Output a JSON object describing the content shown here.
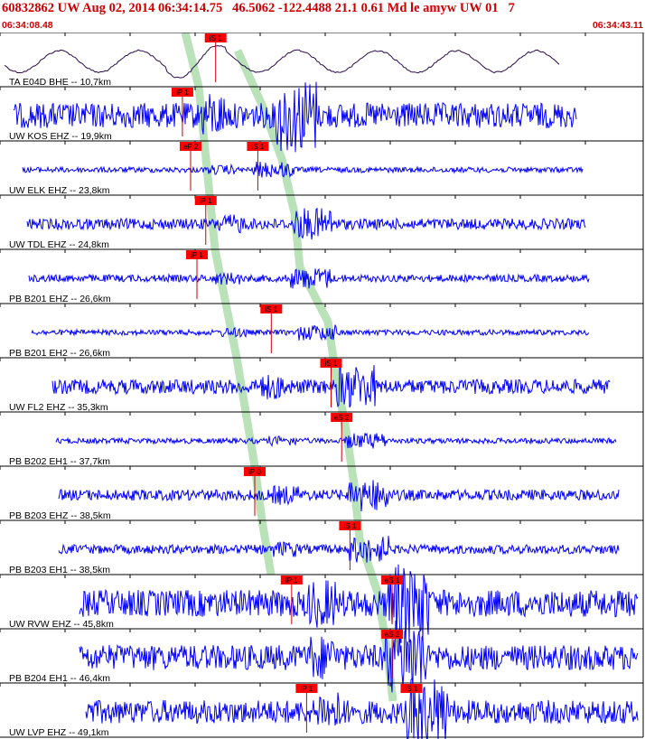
{
  "header": {
    "title": "60832862 UW Aug 02, 2014 06:34:14.75   46.5062 -122.4488 21.1 0.61 Md le amyw UW 01   7",
    "time_start": "06:34:08.48",
    "time_end": "06:34:43.11"
  },
  "colors": {
    "title": "#cc0000",
    "trace_primary": "#0000ff",
    "trace_first": "#2a0a4a",
    "pick_box": "#ff0000",
    "pick_line": "#cc0000",
    "theory_band": "#b9e2b9",
    "axis": "#000000"
  },
  "traces": [
    {
      "label": "TA E04D BHE -- 10,7km",
      "style": "long-period",
      "picks": [
        {
          "label": "iS 1",
          "t": 0.38
        }
      ]
    },
    {
      "label": "UW KOS EHZ -- 19,9km",
      "style": "noisy",
      "picks": [
        {
          "label": "iP 1",
          "t": 0.3
        }
      ]
    },
    {
      "label": "UW ELK EHZ -- 23,8km",
      "style": "quiet",
      "picks": [
        {
          "label": "eP 2",
          "t": 0.3
        },
        {
          "label": "iS 1",
          "t": 0.42
        }
      ]
    },
    {
      "label": "UW TDL EHZ -- 24,8km",
      "style": "medium",
      "picks": [
        {
          "label": "iP 1",
          "t": 0.32
        }
      ]
    },
    {
      "label": "PB B201 EHZ -- 26,6km",
      "style": "medium",
      "picks": [
        {
          "label": "iP 1",
          "t": 0.3
        }
      ]
    },
    {
      "label": "PB B201 EH2 -- 26,6km",
      "style": "quiet",
      "picks": [
        {
          "label": "iS 1",
          "t": 0.43
        }
      ]
    },
    {
      "label": "UW FL2 EHZ -- 35,3km",
      "style": "medium",
      "picks": [
        {
          "label": "iS 1",
          "t": 0.5
        }
      ]
    },
    {
      "label": "PB B202 EH1 -- 37,7km",
      "style": "quiet",
      "picks": [
        {
          "label": "eS 2",
          "t": 0.51
        }
      ]
    },
    {
      "label": "PB B203 EHZ -- 38,5km",
      "style": "medium",
      "picks": [
        {
          "label": "iP 0",
          "t": 0.35
        }
      ]
    },
    {
      "label": "PB B203 EH1 -- 38,5km",
      "style": "medium",
      "picks": [
        {
          "label": "iS 1",
          "t": 0.52
        }
      ]
    },
    {
      "label": "UW RVW EHZ -- 45,8km",
      "style": "noisy",
      "picks": [
        {
          "label": "iP 1",
          "t": 0.38
        },
        {
          "label": "eS 1",
          "t": 0.56
        }
      ]
    },
    {
      "label": "PB B204 EH1 -- 46,4km",
      "style": "noisy",
      "picks": [
        {
          "label": "eS 2",
          "t": 0.56
        }
      ]
    },
    {
      "label": "UW LVP EHZ -- 49,1km",
      "style": "noisy",
      "picks": [
        {
          "label": "iP 1",
          "t": 0.4
        },
        {
          "label": "iS 1",
          "t": 0.59
        }
      ]
    }
  ]
}
